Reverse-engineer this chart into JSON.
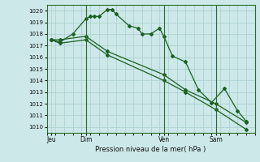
{
  "background_color": "#cce8e8",
  "grid_color": "#aacece",
  "line_color": "#1a6020",
  "title": "Pression niveau de la mer( hPa )",
  "ylim": [
    1009.5,
    1020.5
  ],
  "yticks": [
    1010,
    1011,
    1012,
    1013,
    1014,
    1015,
    1016,
    1017,
    1018,
    1019,
    1020
  ],
  "day_labels": [
    "Jeu",
    "Dim",
    "Ven",
    "Sam"
  ],
  "day_positions": [
    0.5,
    4.5,
    13.5,
    19.5
  ],
  "vline_positions": [
    4.5,
    13.5,
    19.5
  ],
  "series1_x": [
    0.5,
    1.5,
    3.0,
    4.5,
    5.0,
    5.5,
    6.0,
    7.0,
    7.5,
    8.0,
    9.5,
    10.5,
    11.0,
    12.0,
    13.0,
    13.5,
    14.5,
    16.0,
    17.5,
    19.0,
    20.5,
    22.0,
    23.0
  ],
  "series1_y": [
    1017.5,
    1017.3,
    1018.0,
    1019.3,
    1019.5,
    1019.5,
    1019.5,
    1020.1,
    1020.1,
    1019.7,
    1018.7,
    1018.5,
    1018.0,
    1018.0,
    1018.5,
    1017.8,
    1016.1,
    1015.6,
    1013.2,
    1012.1,
    1013.3,
    1011.4,
    1010.5
  ],
  "series2_x": [
    0.5,
    1.5,
    4.5,
    7.0,
    13.5,
    16.0,
    19.5,
    23.0
  ],
  "series2_y": [
    1017.5,
    1017.5,
    1017.8,
    1016.5,
    1014.5,
    1013.2,
    1012.0,
    1010.4
  ],
  "series3_x": [
    0.5,
    1.5,
    4.5,
    7.0,
    13.5,
    16.0,
    19.5,
    23.0
  ],
  "series3_y": [
    1017.5,
    1017.2,
    1017.5,
    1016.2,
    1014.0,
    1013.0,
    1011.5,
    1009.8
  ],
  "xlim": [
    0,
    24
  ],
  "n_xgrid": 24
}
